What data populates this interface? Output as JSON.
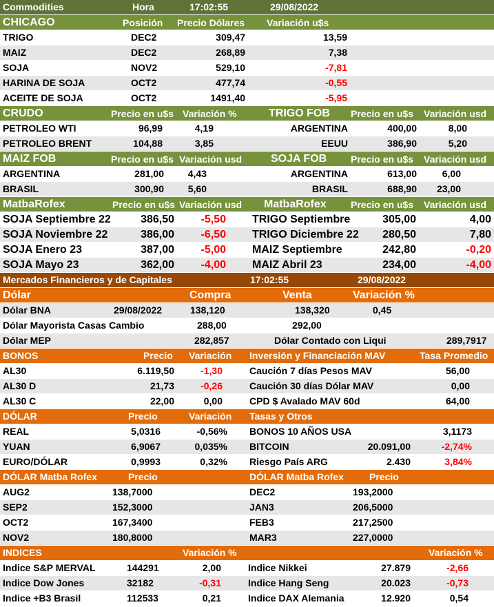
{
  "top": {
    "title": "Commodities",
    "hora_label": "Hora",
    "time": "17:02:55",
    "date": "29/08/2022"
  },
  "chicago": {
    "title": "CHICAGO",
    "col1": "Posición",
    "col2": "Precio Dólares",
    "col3": "Variación u$s",
    "rows": [
      {
        "name": "TRIGO",
        "pos": "DEC2",
        "price": "309,47",
        "var": "13,59"
      },
      {
        "name": "MAIZ",
        "pos": "DEC2",
        "price": "268,89",
        "var": "7,38"
      },
      {
        "name": "SOJA",
        "pos": "NOV2",
        "price": "529,10",
        "var": "-7,81"
      },
      {
        "name": "HARINA DE SOJA",
        "pos": "OCT2",
        "price": "477,74",
        "var": "-0,55"
      },
      {
        "name": "ACEITE DE SOJA",
        "pos": "OCT2",
        "price": "1491,40",
        "var": "-5,95"
      }
    ]
  },
  "crudo": {
    "title": "CRUDO",
    "col1": "Precio en u$s",
    "col2": "Variación %",
    "rows": [
      {
        "name": "PETROLEO WTI",
        "price": "96,99",
        "var": "4,19"
      },
      {
        "name": "PETROLEO BRENT",
        "price": "104,88",
        "var": "3,85"
      }
    ]
  },
  "trigo_fob": {
    "title": "TRIGO FOB",
    "col1": "Precio en u$s",
    "col2": "Variación usd",
    "rows": [
      {
        "name": "ARGENTINA",
        "price": "400,00",
        "var": "8,00"
      },
      {
        "name": "EEUU",
        "price": "386,90",
        "var": "5,20"
      }
    ]
  },
  "maiz_fob": {
    "title": "MAIZ FOB",
    "col1": "Precio en u$s",
    "col2": "Variación usd",
    "rows": [
      {
        "name": "ARGENTINA",
        "price": "281,00",
        "var": "4,43"
      },
      {
        "name": "BRASIL",
        "price": "300,90",
        "var": "5,60"
      }
    ]
  },
  "soja_fob": {
    "title": "SOJA FOB",
    "col1": "Precio en u$s",
    "col2": "Variación usd",
    "rows": [
      {
        "name": "ARGENTINA",
        "price": "613,00",
        "var": "6,00"
      },
      {
        "name": "BRASIL",
        "price": "688,90",
        "var": "23,00"
      }
    ]
  },
  "matba_left": {
    "title": "MatbaRofex",
    "col1": "Precio en u$s",
    "col2": "Variación usd",
    "rows": [
      {
        "name": "SOJA Septiembre 22",
        "price": "386,50",
        "var": "-5,50"
      },
      {
        "name": "SOJA Noviembre 22",
        "price": "386,00",
        "var": "-6,50"
      },
      {
        "name": "SOJA Enero 23",
        "price": "387,00",
        "var": "-5,00"
      },
      {
        "name": "SOJA Mayo 23",
        "price": "362,00",
        "var": "-4,00"
      }
    ]
  },
  "matba_right": {
    "title": "MatbaRofex",
    "col1": "Precio en u$s",
    "col2": "Variación usd",
    "rows": [
      {
        "name": "TRIGO Septiembre",
        "price": "305,00",
        "var": "4,00"
      },
      {
        "name": "TRIGO Diciembre 22",
        "price": "280,50",
        "var": "7,80"
      },
      {
        "name": "MAIZ Septiembre",
        "price": "242,80",
        "var": "-0,20"
      },
      {
        "name": "MAIZ Abril 23",
        "price": "234,00",
        "var": "-4,00"
      }
    ]
  },
  "mercados": {
    "title": "Mercados Financieros y de Capitales",
    "time": "17:02:55",
    "date": "29/08/2022"
  },
  "dolar": {
    "title": "Dólar",
    "col1": "Compra",
    "col2": "Venta",
    "col3": "Variación %",
    "bna": {
      "name": "Dólar BNA",
      "date": "29/08/2022",
      "compra": "138,120",
      "venta": "138,320",
      "var": "0,45"
    },
    "mayorista": {
      "name": "Dólar Mayorista Casas Cambio",
      "compra": "288,00",
      "venta": "292,00"
    },
    "mep": {
      "name": "Dólar MEP",
      "compra": "282,857",
      "ccl_label": "Dólar Contado con Liqui",
      "ccl_value": "289,7917"
    }
  },
  "bonos": {
    "title": "BONOS",
    "col1": "Precio",
    "col2": "Variación",
    "rows": [
      {
        "name": "AL30",
        "price": "6.119,50",
        "var": "-1,30"
      },
      {
        "name": "AL30 D",
        "price": "21,73",
        "var": "-0,26"
      },
      {
        "name": "AL30 C",
        "price": "22,00",
        "var": "0,00"
      }
    ]
  },
  "mav": {
    "title": "Inversión y Financiación MAV",
    "col1": "Tasa Promedio",
    "rows": [
      {
        "name": "Caución 7 días Pesos MAV",
        "val": "56,00"
      },
      {
        "name": "Caución 30 días Dólar MAV",
        "val": "0,00"
      },
      {
        "name": "CPD $ Avalado  MAV 60d",
        "val": "64,00"
      }
    ]
  },
  "dolar2": {
    "title": "DÓLAR",
    "col1": "Precio",
    "col2": "Variación",
    "rows": [
      {
        "name": "REAL",
        "price": "5,0316",
        "var": "-0,56%"
      },
      {
        "name": "YUAN",
        "price": "6,9067",
        "var": "0,035%"
      },
      {
        "name": "EURO/DÓLAR",
        "price": "0,9993",
        "var": "0,32%"
      }
    ]
  },
  "tasas": {
    "title": "Tasas y Otros",
    "rows": [
      {
        "name": "BONOS 10 AÑOS USA",
        "price": "",
        "var": "3,1173"
      },
      {
        "name": "BITCOIN",
        "price": "20.091,00",
        "var": "-2,74%"
      },
      {
        "name": "Riesgo País ARG",
        "price": "2.430",
        "var": "3,84%"
      }
    ]
  },
  "matba_dolar_left": {
    "title": "DÓLAR Matba Rofex",
    "col1": "Precio",
    "rows": [
      {
        "name": "AUG2",
        "price": "138,7000"
      },
      {
        "name": "SEP2",
        "price": "152,3000"
      },
      {
        "name": "OCT2",
        "price": "167,3400"
      },
      {
        "name": "NOV2",
        "price": "180,8000"
      }
    ]
  },
  "matba_dolar_right": {
    "title": "DÓLAR Matba Rofex",
    "col1": "Precio",
    "rows": [
      {
        "name": "DEC2",
        "price": "193,2000"
      },
      {
        "name": "JAN3",
        "price": "206,5000"
      },
      {
        "name": "FEB3",
        "price": "217,2500"
      },
      {
        "name": "MAR3",
        "price": "227,0000"
      }
    ]
  },
  "indices": {
    "title": "INDICES",
    "col1": "Variación %",
    "col2": "Variación %",
    "left": [
      {
        "name": "Indice S&P MERVAL",
        "val": "144291",
        "var": "2,00"
      },
      {
        "name": "Indice Dow Jones",
        "val": "32182",
        "var": "-0,31"
      },
      {
        "name": "Indice +B3 Brasil",
        "val": "112533",
        "var": "0,21"
      }
    ],
    "right": [
      {
        "name": "Indice Nikkei",
        "val": "27.879",
        "var": "-2,66"
      },
      {
        "name": "Indice Hang Seng",
        "val": "20.023",
        "var": "-0,73"
      },
      {
        "name": "Indice DAX Alemania",
        "val": "12.920",
        "var": "0,54"
      }
    ]
  },
  "colors": {
    "green_dark": "#5e7338",
    "green": "#76923c",
    "brown": "#984806",
    "orange": "#e36c0a",
    "negative": "#ff0000",
    "row_alt": "#e6e6e6"
  }
}
